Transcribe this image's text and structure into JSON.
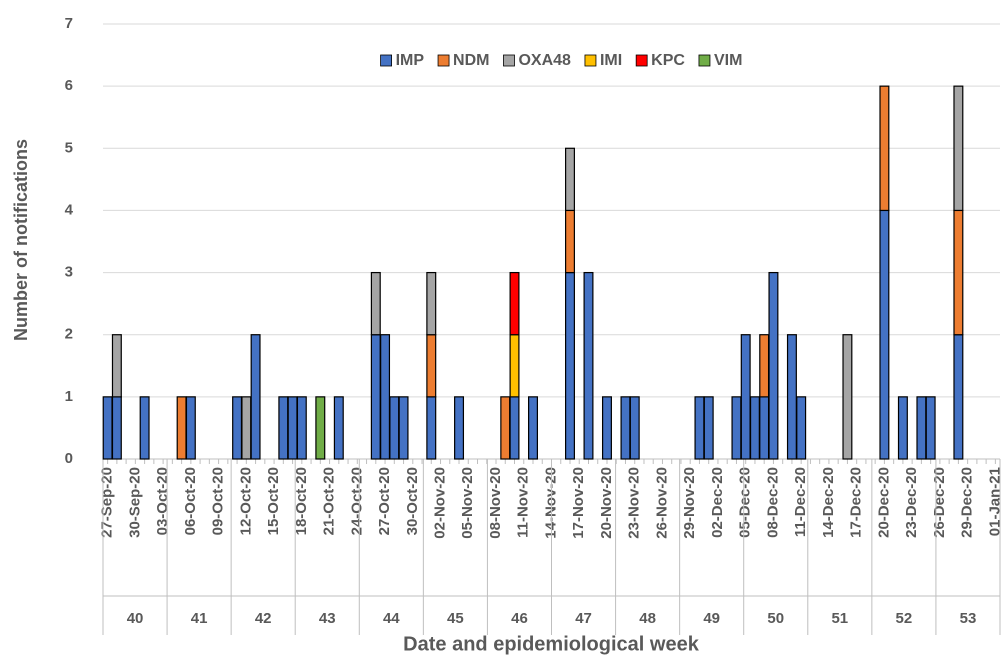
{
  "chart_data": {
    "type": "stacked_bar",
    "x_label": "Date and epidemiological week",
    "y_label": "Number of notifications",
    "categories": [
      "27-Sep-20",
      null,
      null,
      "30-Sep-20",
      null,
      null,
      "03-Oct-20",
      null,
      null,
      "06-Oct-20",
      null,
      null,
      "09-Oct-20",
      null,
      null,
      "12-Oct-20",
      null,
      null,
      "15-Oct-20",
      null,
      null,
      "18-Oct-20",
      null,
      null,
      "21-Oct-20",
      null,
      null,
      "24-Oct-20",
      null,
      null,
      "27-Oct-20",
      null,
      null,
      "30-Oct-20",
      null,
      null,
      "02-Nov-20",
      null,
      null,
      "05-Nov-20",
      null,
      null,
      "08-Nov-20",
      null,
      null,
      "11-Nov-20",
      null,
      null,
      "14-Nov-20",
      null,
      null,
      "17-Nov-20",
      null,
      null,
      "20-Nov-20",
      null,
      null,
      "23-Nov-20",
      null,
      null,
      "26-Nov-20",
      null,
      null,
      "29-Nov-20",
      null,
      null,
      "02-Dec-20",
      null,
      null,
      "05-Dec-20",
      null,
      null,
      "08-Dec-20",
      null,
      null,
      "11-Dec-20",
      null,
      null,
      "14-Dec-20",
      null,
      null,
      "17-Dec-20",
      null,
      null,
      "20-Dec-20",
      null,
      null,
      "23-Dec-20",
      null,
      null,
      "26-Dec-20",
      null,
      null,
      "29-Dec-20",
      null,
      null,
      "01-Jan-21"
    ],
    "weeks": [
      "40",
      "41",
      "42",
      "43",
      "44",
      "45",
      "46",
      "47",
      "48",
      "49",
      "50",
      "51",
      "52",
      "53"
    ],
    "series": [
      {
        "name": "IMP",
        "color": "#4472c4",
        "values": [
          1,
          1,
          0,
          0,
          1,
          0,
          0,
          0,
          0,
          1,
          0,
          0,
          0,
          0,
          1,
          0,
          2,
          0,
          0,
          1,
          1,
          1,
          0,
          0,
          0,
          1,
          0,
          0,
          0,
          2,
          2,
          1,
          1,
          0,
          0,
          1,
          0,
          0,
          1,
          0,
          0,
          0,
          0,
          0,
          1,
          0,
          1,
          0,
          0,
          0,
          3,
          0,
          3,
          0,
          1,
          0,
          1,
          1,
          0,
          0,
          0,
          0,
          0,
          0,
          1,
          1,
          0,
          0,
          1,
          2,
          1,
          1,
          3,
          0,
          2,
          1,
          0,
          0,
          0,
          0,
          0,
          0,
          0,
          0,
          4,
          0,
          1,
          0,
          1,
          1,
          0,
          0,
          2,
          0,
          0,
          0,
          0
        ]
      },
      {
        "name": "NDM",
        "color": "#ed7d31",
        "values": [
          0,
          0,
          0,
          0,
          0,
          0,
          0,
          0,
          1,
          0,
          0,
          0,
          0,
          0,
          0,
          0,
          0,
          0,
          0,
          0,
          0,
          0,
          0,
          0,
          0,
          0,
          0,
          0,
          0,
          0,
          0,
          0,
          0,
          0,
          0,
          1,
          0,
          0,
          0,
          0,
          0,
          0,
          0,
          1,
          0,
          0,
          0,
          0,
          0,
          0,
          1,
          0,
          0,
          0,
          0,
          0,
          0,
          0,
          0,
          0,
          0,
          0,
          0,
          0,
          0,
          0,
          0,
          0,
          0,
          0,
          0,
          1,
          0,
          0,
          0,
          0,
          0,
          0,
          0,
          0,
          0,
          0,
          0,
          0,
          2,
          0,
          0,
          0,
          0,
          0,
          0,
          0,
          2,
          0,
          0,
          0,
          0
        ]
      },
      {
        "name": "OXA48",
        "color": "#a5a5a5",
        "values": [
          0,
          1,
          0,
          0,
          0,
          0,
          0,
          0,
          0,
          0,
          0,
          0,
          0,
          0,
          0,
          1,
          0,
          0,
          0,
          0,
          0,
          0,
          0,
          0,
          0,
          0,
          0,
          0,
          0,
          1,
          0,
          0,
          0,
          0,
          0,
          1,
          0,
          0,
          0,
          0,
          0,
          0,
          0,
          0,
          0,
          0,
          0,
          0,
          0,
          0,
          1,
          0,
          0,
          0,
          0,
          0,
          0,
          0,
          0,
          0,
          0,
          0,
          0,
          0,
          0,
          0,
          0,
          0,
          0,
          0,
          0,
          0,
          0,
          0,
          0,
          0,
          0,
          0,
          0,
          0,
          2,
          0,
          0,
          0,
          0,
          0,
          0,
          0,
          0,
          0,
          0,
          0,
          2,
          0,
          0,
          0,
          0
        ]
      },
      {
        "name": "IMI",
        "color": "#ffc000",
        "values": [
          0,
          0,
          0,
          0,
          0,
          0,
          0,
          0,
          0,
          0,
          0,
          0,
          0,
          0,
          0,
          0,
          0,
          0,
          0,
          0,
          0,
          0,
          0,
          0,
          0,
          0,
          0,
          0,
          0,
          0,
          0,
          0,
          0,
          0,
          0,
          0,
          0,
          0,
          0,
          0,
          0,
          0,
          0,
          0,
          1,
          0,
          0,
          0,
          0,
          0,
          0,
          0,
          0,
          0,
          0,
          0,
          0,
          0,
          0,
          0,
          0,
          0,
          0,
          0,
          0,
          0,
          0,
          0,
          0,
          0,
          0,
          0,
          0,
          0,
          0,
          0,
          0,
          0,
          0,
          0,
          0,
          0,
          0,
          0,
          0,
          0,
          0,
          0,
          0,
          0,
          0,
          0,
          0,
          0,
          0,
          0,
          0
        ]
      },
      {
        "name": "KPC",
        "color": "#ff0000",
        "values": [
          0,
          0,
          0,
          0,
          0,
          0,
          0,
          0,
          0,
          0,
          0,
          0,
          0,
          0,
          0,
          0,
          0,
          0,
          0,
          0,
          0,
          0,
          0,
          0,
          0,
          0,
          0,
          0,
          0,
          0,
          0,
          0,
          0,
          0,
          0,
          0,
          0,
          0,
          0,
          0,
          0,
          0,
          0,
          0,
          1,
          0,
          0,
          0,
          0,
          0,
          0,
          0,
          0,
          0,
          0,
          0,
          0,
          0,
          0,
          0,
          0,
          0,
          0,
          0,
          0,
          0,
          0,
          0,
          0,
          0,
          0,
          0,
          0,
          0,
          0,
          0,
          0,
          0,
          0,
          0,
          0,
          0,
          0,
          0,
          0,
          0,
          0,
          0,
          0,
          0,
          0,
          0,
          0,
          0,
          0,
          0,
          0
        ]
      },
      {
        "name": "VIM",
        "color": "#70ad47",
        "values": [
          0,
          0,
          0,
          0,
          0,
          0,
          0,
          0,
          0,
          0,
          0,
          0,
          0,
          0,
          0,
          0,
          0,
          0,
          0,
          0,
          0,
          0,
          0,
          1,
          0,
          0,
          0,
          0,
          0,
          0,
          0,
          0,
          0,
          0,
          0,
          0,
          0,
          0,
          0,
          0,
          0,
          0,
          0,
          0,
          0,
          0,
          0,
          0,
          0,
          0,
          0,
          0,
          0,
          0,
          0,
          0,
          0,
          0,
          0,
          0,
          0,
          0,
          0,
          0,
          0,
          0,
          0,
          0,
          0,
          0,
          0,
          0,
          0,
          0,
          0,
          0,
          0,
          0,
          0,
          0,
          0,
          0,
          0,
          0,
          0,
          0,
          0,
          0,
          0,
          0,
          0,
          0,
          0,
          0,
          0,
          0,
          0
        ]
      }
    ],
    "ylim": [
      0,
      7
    ],
    "yticks": [
      0,
      1,
      2,
      3,
      4,
      5,
      6,
      7
    ],
    "grid": true,
    "legend": "top"
  }
}
